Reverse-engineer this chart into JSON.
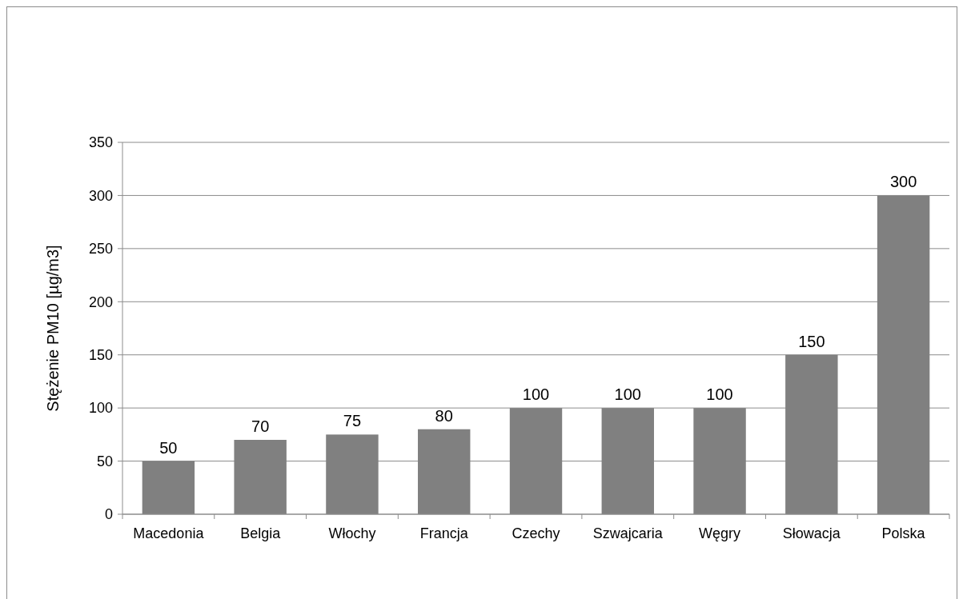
{
  "chart_data": {
    "type": "bar",
    "ylabel": "Stężenie PM10 [µg/m3]",
    "categories": [
      "Macedonia",
      "Belgia",
      "Włochy",
      "Francja",
      "Czechy",
      "Szwajcaria",
      "Węgry",
      "Słowacja",
      "Polska"
    ],
    "values": [
      50,
      70,
      75,
      80,
      100,
      100,
      100,
      150,
      300
    ],
    "color": "#808080",
    "ylim": [
      0,
      350
    ],
    "yticks": [
      0,
      50,
      100,
      150,
      200,
      250,
      300,
      350
    ],
    "grid": "y",
    "data_labels": true
  }
}
